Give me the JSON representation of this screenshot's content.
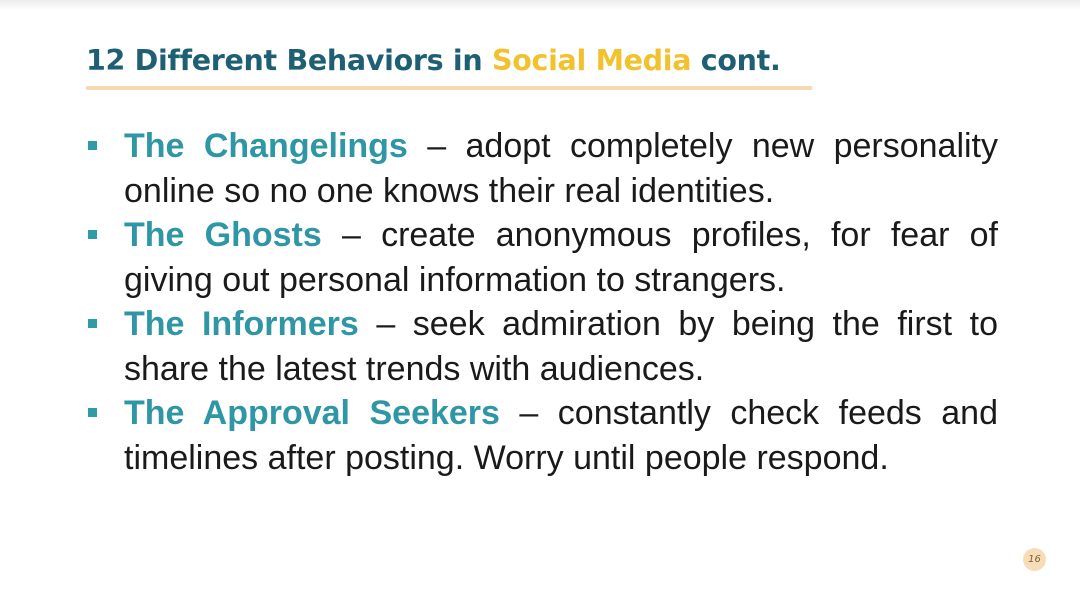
{
  "title": {
    "part1": "12 Different Behaviors in ",
    "accent": "Social Media",
    "part2": " cont."
  },
  "bullets": [
    {
      "term": "The Changelings",
      "text": " – adopt completely new personality online so no one knows their real identities."
    },
    {
      "term": "The Ghosts",
      "text": " – create anonymous profiles, for fear of giving out personal information to strangers."
    },
    {
      "term": "The Informers",
      "text": " – seek admiration by being the first to share the latest trends with audiences."
    },
    {
      "term": "The Approval Seekers",
      "text": " – constantly check feeds and timelines after posting. Worry until people respond."
    }
  ],
  "page_number": "16",
  "colors": {
    "title": "#1f5f73",
    "title_accent": "#f2c12e",
    "term": "#2e96a4",
    "bullet_marker": "#2f9aa8",
    "underline": "#f5d9b3",
    "page_badge": "#f6ddb7"
  }
}
